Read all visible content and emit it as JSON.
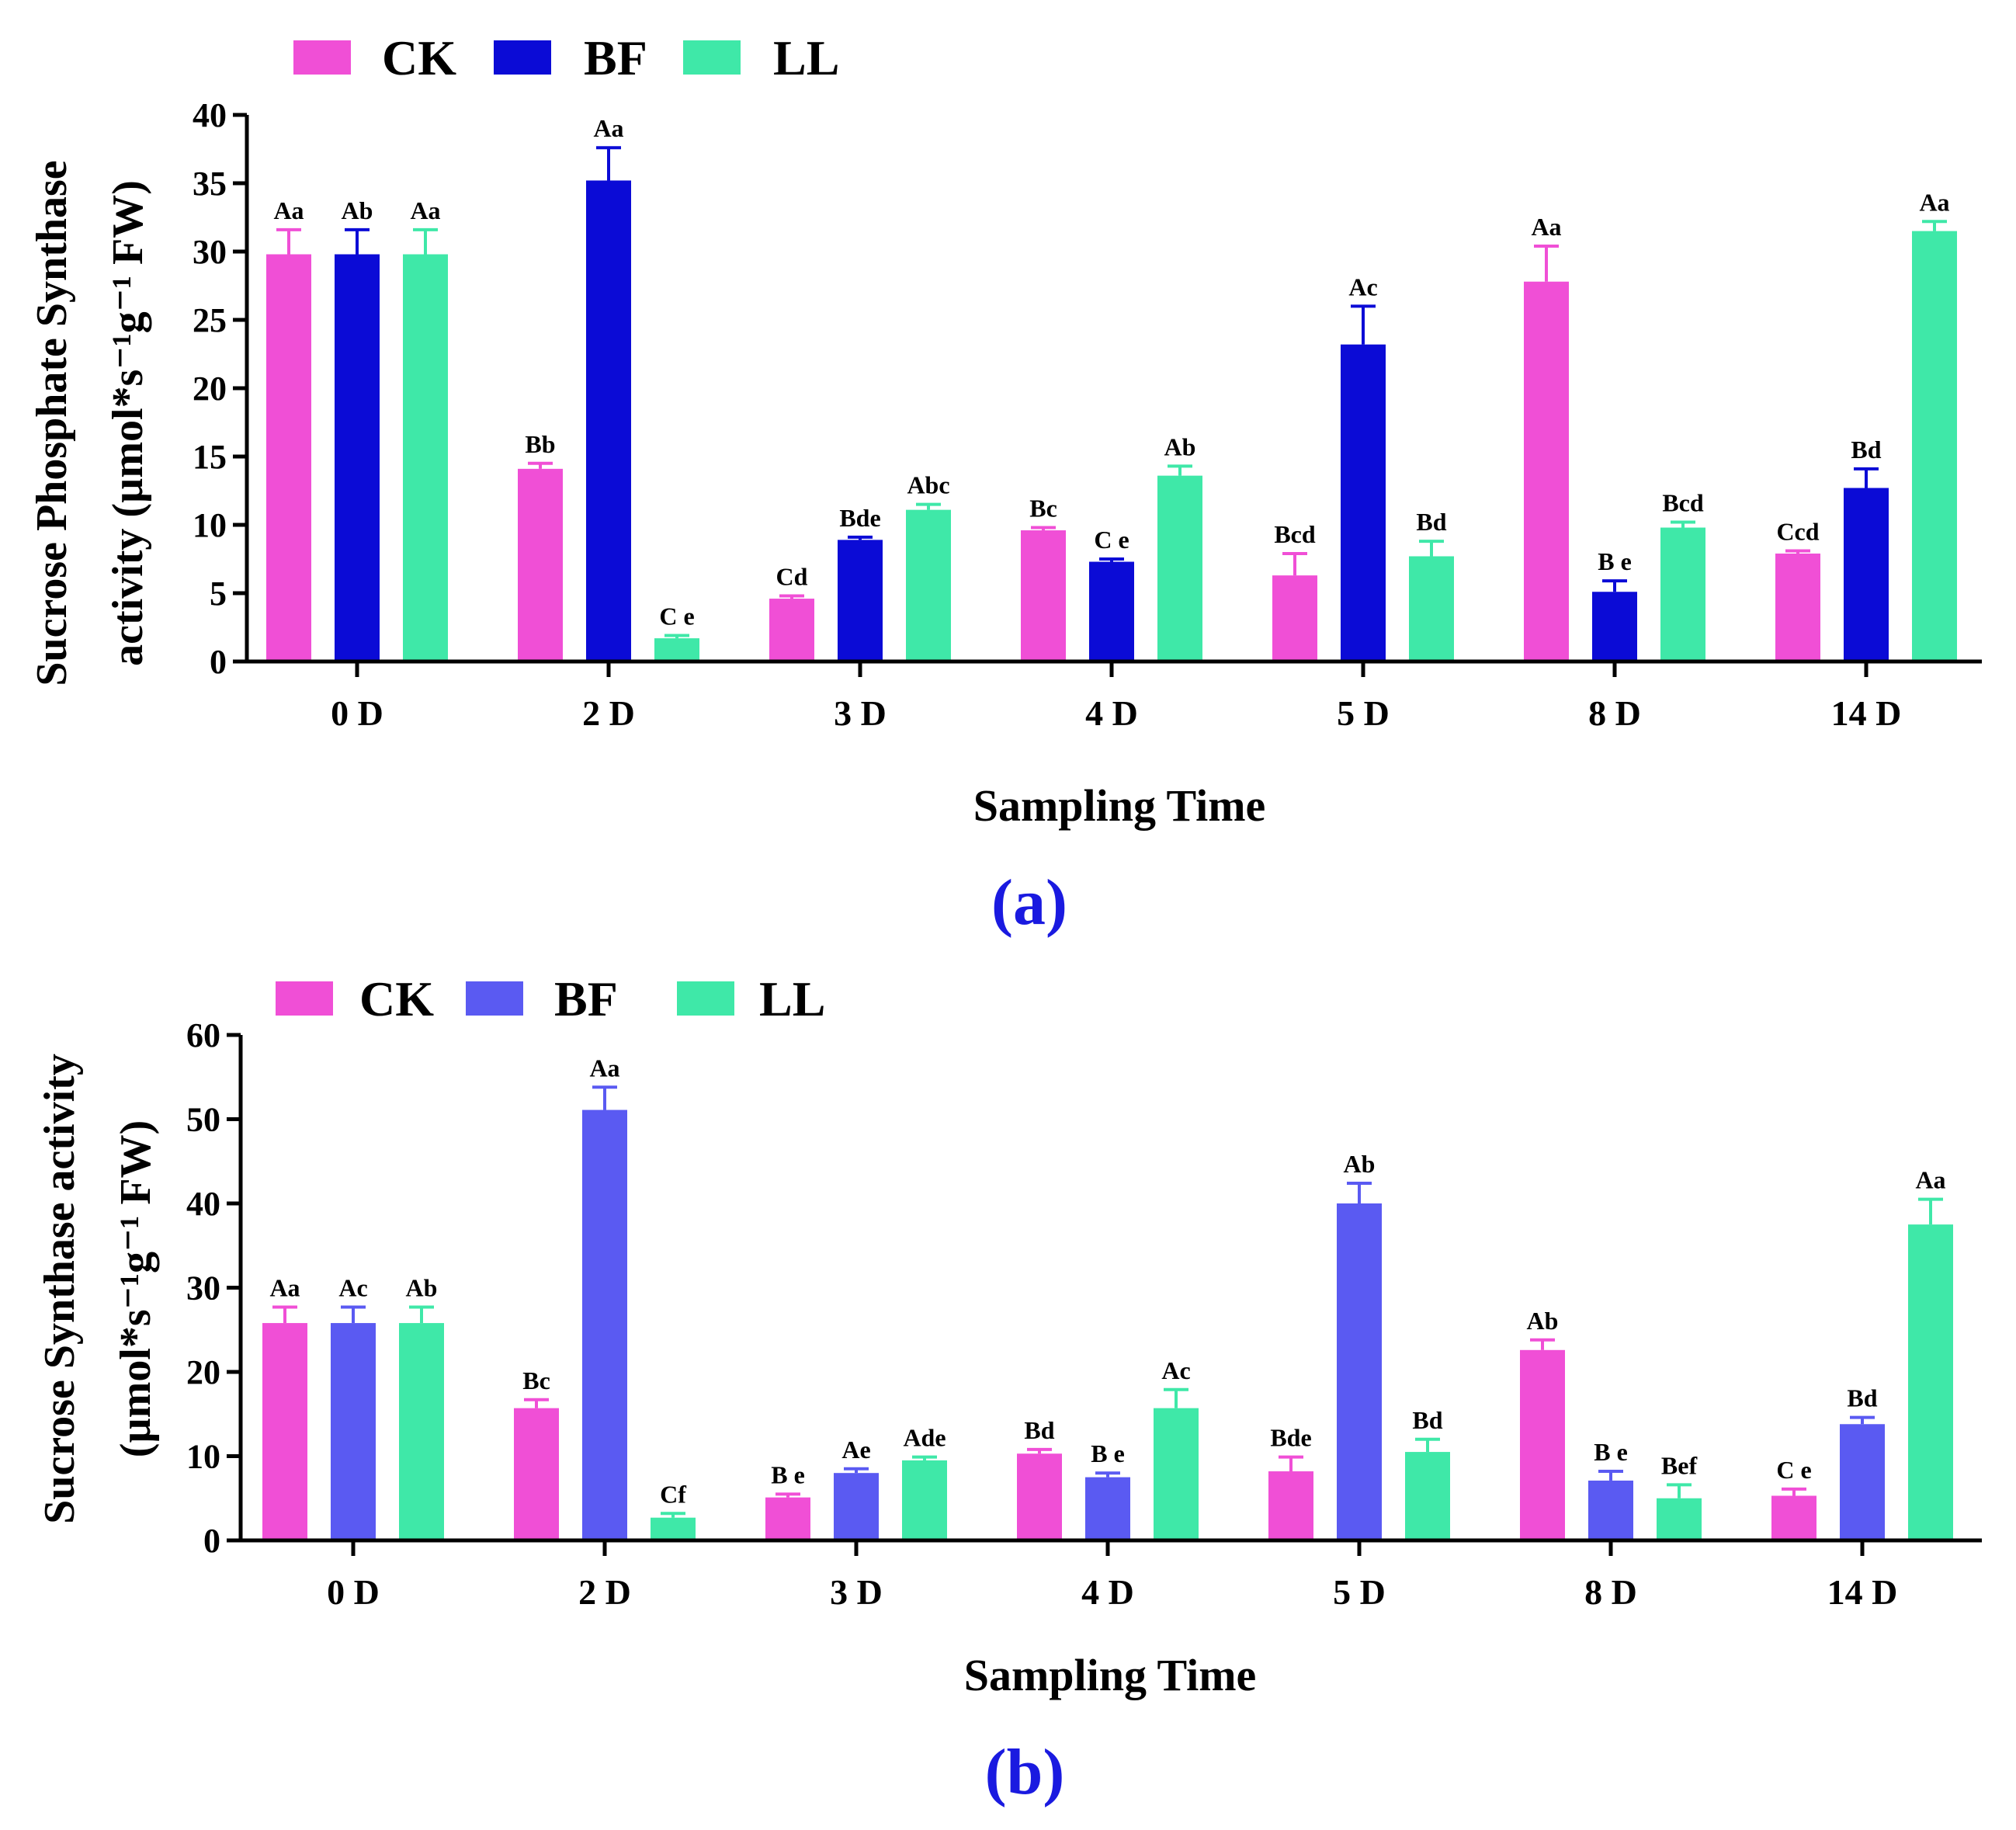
{
  "colors": {
    "CK": "#f04fd6",
    "BF_a": "#0b0bd6",
    "BF_b": "#5a5af2",
    "LL": "#3fe8a8",
    "panel_tag": "#1a1ae0"
  },
  "chart_data": [
    {
      "id": "a",
      "type": "bar",
      "panel_tag": "(a)",
      "title": "",
      "xlabel": "Sampling Time",
      "ylabel_line1": "Sucrose Phosphate Synthase",
      "ylabel_line2": "activity  (µmol*s⁻¹g⁻¹ FW)",
      "ylim": [
        0,
        40
      ],
      "yticks": [
        0,
        5,
        10,
        15,
        20,
        25,
        30,
        35,
        40
      ],
      "legend_position": "top-left",
      "categories": [
        "0 D",
        "2 D",
        "3 D",
        "4 D",
        "5 D",
        "8 D",
        "14 D"
      ],
      "series": [
        {
          "name": "CK",
          "values": [
            29.8,
            14.1,
            4.6,
            9.6,
            6.3,
            27.8,
            7.9
          ],
          "errors": [
            1.8,
            0.4,
            0.2,
            0.2,
            1.6,
            2.6,
            0.2
          ],
          "labels": [
            "Aa",
            "Bb",
            "Cd",
            "Bc",
            "Bcd",
            "Aa",
            "Ccd"
          ]
        },
        {
          "name": "BF",
          "values": [
            29.8,
            35.2,
            8.9,
            7.3,
            23.2,
            5.1,
            12.7
          ],
          "errors": [
            1.8,
            2.4,
            0.2,
            0.2,
            2.8,
            0.8,
            1.4
          ],
          "labels": [
            "Ab",
            "Aa",
            "Bde",
            "C e",
            "Ac",
            "B e",
            "Bd"
          ]
        },
        {
          "name": "LL",
          "values": [
            29.8,
            1.7,
            11.1,
            13.6,
            7.7,
            9.8,
            31.5
          ],
          "errors": [
            1.8,
            0.2,
            0.4,
            0.7,
            1.1,
            0.4,
            0.7
          ],
          "labels": [
            "Aa",
            "C e",
            "Abc",
            "Ab",
            "Bd",
            "Bcd",
            "Aa"
          ]
        }
      ]
    },
    {
      "id": "b",
      "type": "bar",
      "panel_tag": "(b)",
      "title": "",
      "xlabel": "Sampling Time",
      "ylabel_line1": "Sucrose Synthase activity",
      "ylabel_line2": "(µmol*s⁻¹g⁻¹ FW)",
      "ylim": [
        0,
        60
      ],
      "yticks": [
        0,
        10,
        20,
        30,
        40,
        50,
        60
      ],
      "legend_position": "top-left",
      "categories": [
        "0 D",
        "2 D",
        "3 D",
        "4 D",
        "5 D",
        "8 D",
        "14 D"
      ],
      "series": [
        {
          "name": "CK",
          "values": [
            25.8,
            15.7,
            5.1,
            10.3,
            8.2,
            22.6,
            5.3
          ],
          "errors": [
            1.9,
            1.0,
            0.4,
            0.5,
            1.7,
            1.2,
            0.8
          ],
          "labels": [
            "Aa",
            "Bc",
            "B e",
            "Bd",
            "Bde",
            "Ab",
            "C e"
          ]
        },
        {
          "name": "BF",
          "values": [
            25.8,
            51.1,
            8.0,
            7.5,
            40.0,
            7.1,
            13.8
          ],
          "errors": [
            1.9,
            2.7,
            0.5,
            0.5,
            2.4,
            1.1,
            0.8
          ],
          "labels": [
            "Ac",
            "Aa",
            "Ae",
            "B e",
            "Ab",
            "B e",
            "Bd"
          ]
        },
        {
          "name": "LL",
          "values": [
            25.8,
            2.7,
            9.5,
            15.7,
            10.5,
            5.0,
            37.5
          ],
          "errors": [
            1.9,
            0.5,
            0.4,
            2.2,
            1.5,
            1.6,
            3.0
          ],
          "labels": [
            "Ab",
            "Cf",
            "Ade",
            "Ac",
            "Bd",
            "Bef",
            "Aa"
          ]
        }
      ]
    }
  ]
}
